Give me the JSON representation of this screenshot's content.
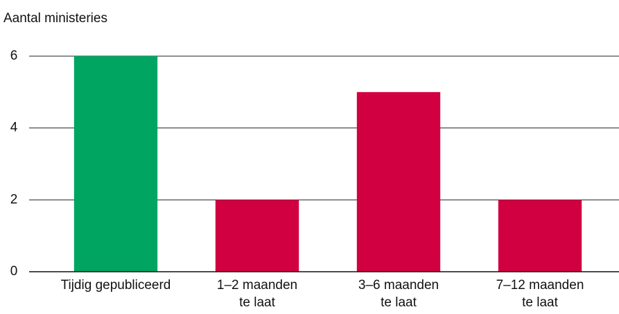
{
  "chart_data": {
    "type": "bar",
    "y_label": "Aantal ministeries",
    "categories": [
      [
        "Tijdig gepubliceerd"
      ],
      [
        "1–2 maanden",
        "te laat"
      ],
      [
        "3–6 maanden",
        "te laat"
      ],
      [
        "7–12 maanden",
        "te laat"
      ]
    ],
    "values": [
      6,
      2,
      5,
      2
    ],
    "colors": [
      "#00a562",
      "#d10040",
      "#d10040",
      "#d10040"
    ],
    "ylim": [
      0,
      6
    ],
    "yticks": [
      0,
      2,
      4,
      6
    ],
    "grid": true
  }
}
